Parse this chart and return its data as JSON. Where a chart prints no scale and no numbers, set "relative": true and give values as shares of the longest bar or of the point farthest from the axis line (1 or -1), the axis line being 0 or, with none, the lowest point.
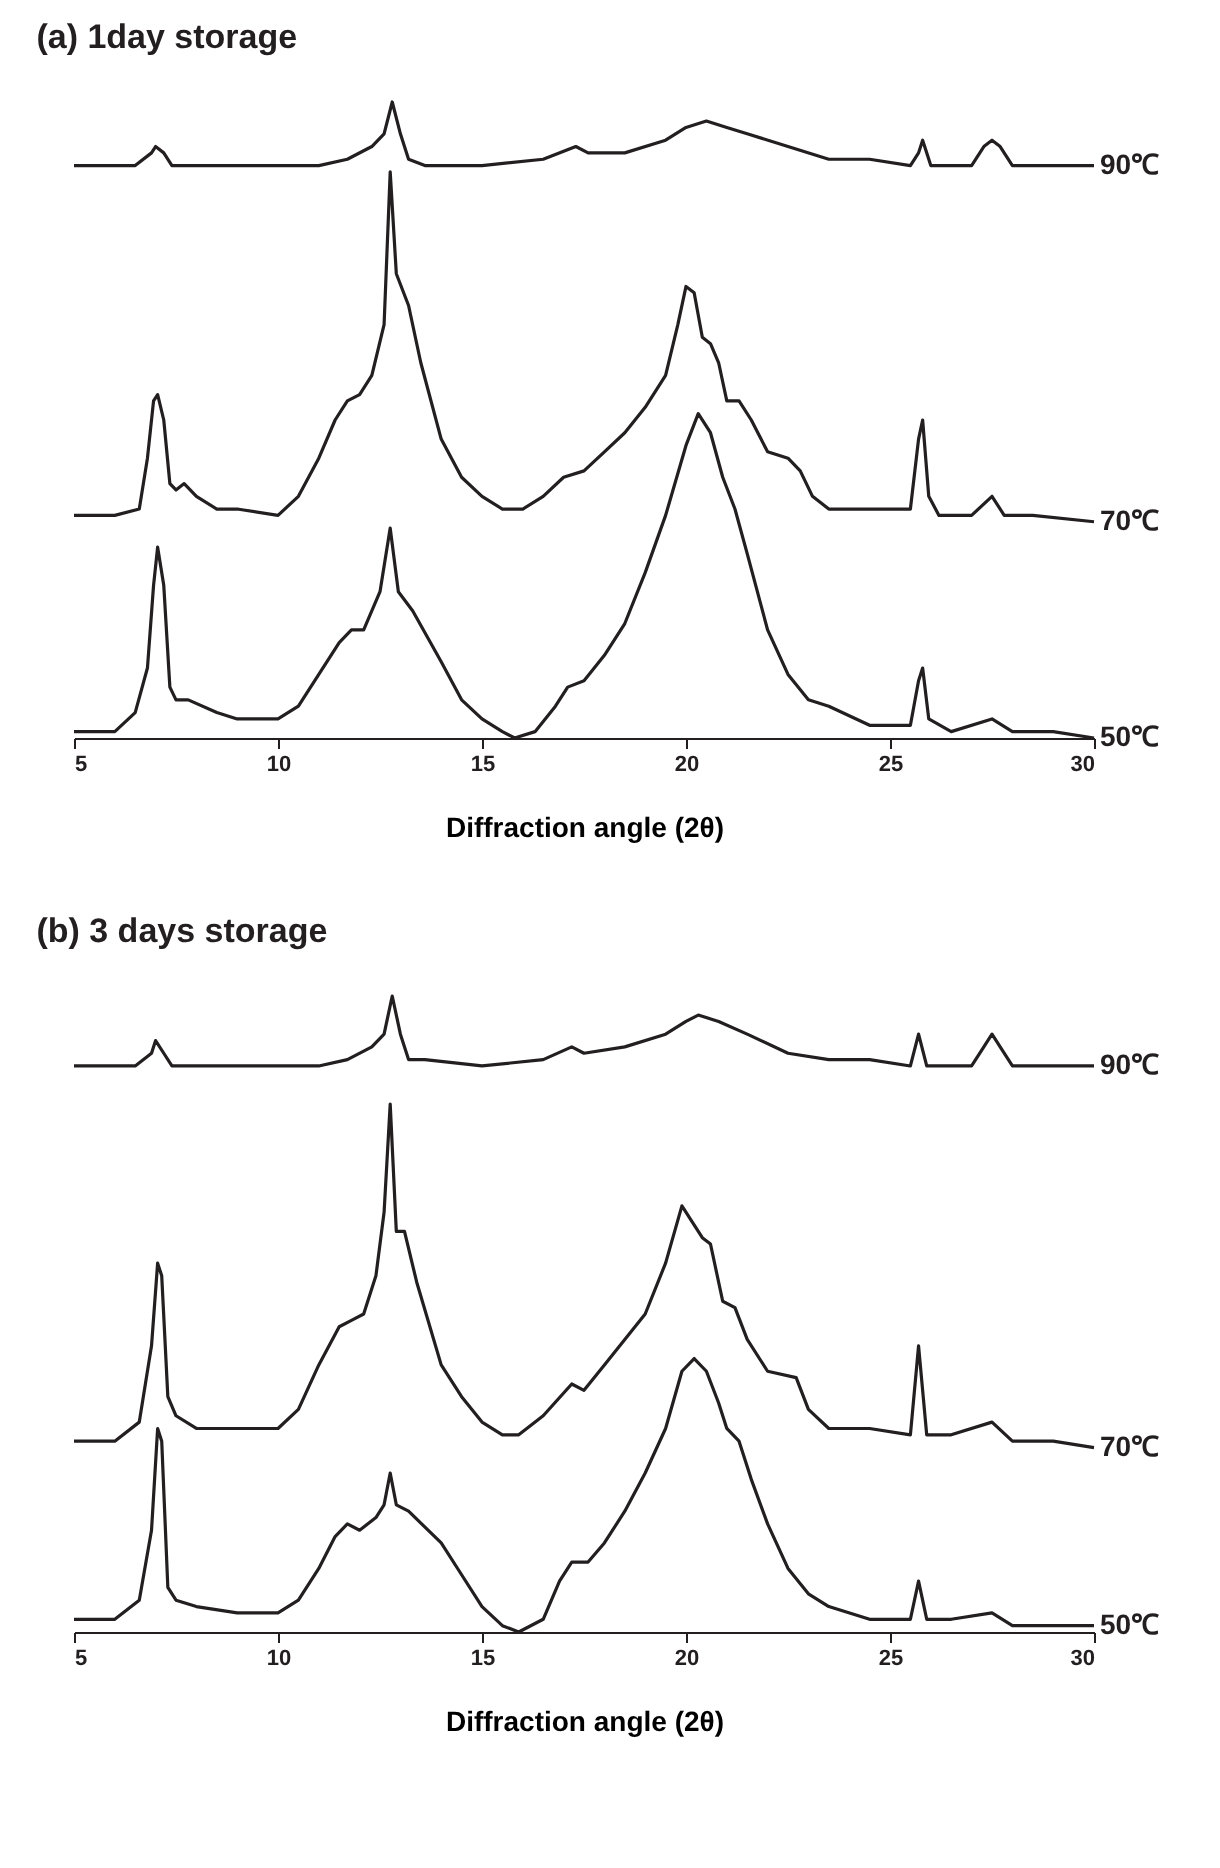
{
  "chart_data": [
    {
      "type": "line",
      "title": "(a) 1day storage",
      "xlabel": "Diffraction angle (2θ)",
      "relative": true,
      "legend": false,
      "xlim": [
        5,
        30
      ],
      "xticks": [
        5,
        10,
        15,
        20,
        25,
        30
      ],
      "series": [
        {
          "name": "90℃",
          "color": "#231f20",
          "x": [
            5,
            6.5,
            6.9,
            7,
            7.2,
            7.4,
            9,
            10,
            11,
            11.7,
            12.3,
            12.6,
            12.8,
            13,
            13.2,
            13.6,
            15,
            16.5,
            17.3,
            17.6,
            18.5,
            19.5,
            20,
            20.5,
            21,
            21.5,
            22.5,
            23.5,
            24.5,
            25.5,
            25.7,
            25.8,
            26,
            27,
            27.3,
            27.5,
            27.7,
            28,
            29,
            30
          ],
          "values": [
            0.9,
            0.9,
            0.92,
            0.93,
            0.92,
            0.9,
            0.9,
            0.9,
            0.9,
            0.91,
            0.93,
            0.95,
            1,
            0.95,
            0.91,
            0.9,
            0.9,
            0.91,
            0.93,
            0.92,
            0.92,
            0.94,
            0.96,
            0.97,
            0.96,
            0.95,
            0.93,
            0.91,
            0.91,
            0.9,
            0.92,
            0.94,
            0.9,
            0.9,
            0.93,
            0.94,
            0.93,
            0.9,
            0.9,
            0.9
          ]
        },
        {
          "name": "70℃",
          "color": "#231f20",
          "x": [
            5,
            6,
            6.6,
            6.8,
            6.95,
            7.05,
            7.2,
            7.35,
            7.5,
            7.7,
            8,
            8.5,
            9,
            10,
            10.5,
            11,
            11.4,
            11.7,
            12,
            12.3,
            12.6,
            12.75,
            12.9,
            13.2,
            13.5,
            14,
            14.5,
            15,
            15.5,
            16,
            16.5,
            17,
            17.5,
            18,
            18.5,
            19,
            19.5,
            19.8,
            20,
            20.2,
            20.4,
            20.6,
            20.8,
            21,
            21.3,
            21.6,
            22,
            22.5,
            22.8,
            23.1,
            23.5,
            24.5,
            25.5,
            25.7,
            25.8,
            25.95,
            26.2,
            27,
            27.5,
            27.8,
            28.5,
            30
          ],
          "values": [
            0.35,
            0.35,
            0.36,
            0.44,
            0.53,
            0.54,
            0.5,
            0.4,
            0.39,
            0.4,
            0.38,
            0.36,
            0.36,
            0.35,
            0.38,
            0.44,
            0.5,
            0.53,
            0.54,
            0.57,
            0.65,
            0.89,
            0.73,
            0.68,
            0.59,
            0.47,
            0.41,
            0.38,
            0.36,
            0.36,
            0.38,
            0.41,
            0.42,
            0.45,
            0.48,
            0.52,
            0.57,
            0.65,
            0.71,
            0.7,
            0.63,
            0.62,
            0.59,
            0.53,
            0.53,
            0.5,
            0.45,
            0.44,
            0.42,
            0.38,
            0.36,
            0.36,
            0.36,
            0.47,
            0.5,
            0.38,
            0.35,
            0.35,
            0.38,
            0.35,
            0.35,
            0.34
          ]
        },
        {
          "name": "50℃",
          "color": "#231f20",
          "x": [
            5,
            6,
            6.5,
            6.8,
            6.95,
            7.05,
            7.2,
            7.35,
            7.5,
            7.8,
            8.5,
            9,
            10,
            10.5,
            11,
            11.5,
            11.8,
            12.1,
            12.5,
            12.75,
            12.95,
            13.3,
            14,
            14.5,
            15,
            15.5,
            15.8,
            16.3,
            16.8,
            17.1,
            17.5,
            18,
            18.5,
            19,
            19.5,
            20,
            20.3,
            20.6,
            20.9,
            21.2,
            21.5,
            22,
            22.5,
            23,
            23.5,
            24.5,
            25.5,
            25.7,
            25.8,
            25.95,
            26.5,
            27.5,
            28,
            29,
            30
          ],
          "values": [
            0.01,
            0.01,
            0.04,
            0.11,
            0.24,
            0.3,
            0.24,
            0.08,
            0.06,
            0.06,
            0.04,
            0.03,
            0.03,
            0.05,
            0.1,
            0.15,
            0.17,
            0.17,
            0.23,
            0.33,
            0.23,
            0.2,
            0.12,
            0.06,
            0.03,
            0.01,
            0,
            0.01,
            0.05,
            0.08,
            0.09,
            0.13,
            0.18,
            0.26,
            0.35,
            0.46,
            0.51,
            0.48,
            0.41,
            0.36,
            0.29,
            0.17,
            0.1,
            0.06,
            0.05,
            0.02,
            0.02,
            0.09,
            0.11,
            0.03,
            0.01,
            0.03,
            0.01,
            0.01,
            0
          ]
        }
      ]
    },
    {
      "type": "line",
      "title": "(b) 3 days storage",
      "xlabel": "Diffraction angle (2θ)",
      "relative": true,
      "legend": false,
      "xlim": [
        5,
        30
      ],
      "xticks": [
        5,
        10,
        15,
        20,
        25,
        30
      ],
      "series": [
        {
          "name": "90℃",
          "color": "#231f20",
          "x": [
            5,
            6.5,
            6.9,
            7,
            7.2,
            7.4,
            9,
            10,
            11,
            11.7,
            12.3,
            12.6,
            12.8,
            13,
            13.2,
            13.6,
            15,
            16.5,
            17.2,
            17.5,
            18.5,
            19.5,
            20,
            20.3,
            20.8,
            21.5,
            22.5,
            23.5,
            24.5,
            25.5,
            25.7,
            25.9,
            27,
            27.3,
            27.5,
            27.7,
            28,
            29,
            30
          ],
          "values": [
            0.89,
            0.89,
            0.91,
            0.93,
            0.91,
            0.89,
            0.89,
            0.89,
            0.89,
            0.9,
            0.92,
            0.94,
            1,
            0.94,
            0.9,
            0.9,
            0.89,
            0.9,
            0.92,
            0.91,
            0.92,
            0.94,
            0.96,
            0.97,
            0.96,
            0.94,
            0.91,
            0.9,
            0.9,
            0.89,
            0.94,
            0.89,
            0.89,
            0.92,
            0.94,
            0.92,
            0.89,
            0.89,
            0.89
          ]
        },
        {
          "name": "70℃",
          "color": "#231f20",
          "x": [
            5,
            6,
            6.6,
            6.9,
            7.05,
            7.15,
            7.3,
            7.5,
            8,
            9,
            10,
            10.5,
            11,
            11.5,
            11.8,
            12.1,
            12.4,
            12.6,
            12.75,
            12.9,
            13.1,
            13.4,
            14,
            14.5,
            15,
            15.5,
            15.9,
            16.5,
            17.2,
            17.5,
            18,
            18.5,
            19,
            19.5,
            19.9,
            20.1,
            20.4,
            20.6,
            20.9,
            21.2,
            21.5,
            22,
            22.7,
            23,
            23.5,
            24.5,
            25.5,
            25.7,
            25.9,
            26.5,
            27.5,
            28,
            29,
            30
          ],
          "values": [
            0.3,
            0.3,
            0.33,
            0.45,
            0.58,
            0.56,
            0.37,
            0.34,
            0.32,
            0.32,
            0.32,
            0.35,
            0.42,
            0.48,
            0.49,
            0.5,
            0.56,
            0.66,
            0.83,
            0.63,
            0.63,
            0.55,
            0.42,
            0.37,
            0.33,
            0.31,
            0.31,
            0.34,
            0.39,
            0.38,
            0.42,
            0.46,
            0.5,
            0.58,
            0.67,
            0.65,
            0.62,
            0.61,
            0.52,
            0.51,
            0.46,
            0.41,
            0.4,
            0.35,
            0.32,
            0.32,
            0.31,
            0.45,
            0.31,
            0.31,
            0.33,
            0.3,
            0.3,
            0.29
          ]
        },
        {
          "name": "50℃",
          "color": "#231f20",
          "x": [
            5,
            6,
            6.6,
            6.9,
            7.05,
            7.15,
            7.3,
            7.5,
            8,
            9,
            10,
            10.5,
            11,
            11.4,
            11.7,
            12,
            12.4,
            12.6,
            12.75,
            12.9,
            13.2,
            14,
            14.5,
            15,
            15.5,
            15.9,
            16.5,
            16.9,
            17.2,
            17.6,
            18,
            18.5,
            19,
            19.5,
            19.9,
            20.2,
            20.5,
            20.8,
            21,
            21.3,
            21.6,
            22,
            22.5,
            23,
            23.5,
            24.5,
            25.5,
            25.7,
            25.9,
            26.5,
            27.5,
            28,
            29,
            30
          ],
          "values": [
            0.02,
            0.02,
            0.05,
            0.16,
            0.32,
            0.3,
            0.07,
            0.05,
            0.04,
            0.03,
            0.03,
            0.05,
            0.1,
            0.15,
            0.17,
            0.16,
            0.18,
            0.2,
            0.25,
            0.2,
            0.19,
            0.14,
            0.09,
            0.04,
            0.01,
            0,
            0.02,
            0.08,
            0.11,
            0.11,
            0.14,
            0.19,
            0.25,
            0.32,
            0.41,
            0.43,
            0.41,
            0.36,
            0.32,
            0.3,
            0.24,
            0.17,
            0.1,
            0.06,
            0.04,
            0.02,
            0.02,
            0.08,
            0.02,
            0.02,
            0.03,
            0.01,
            0.01,
            0.01
          ]
        }
      ]
    }
  ]
}
